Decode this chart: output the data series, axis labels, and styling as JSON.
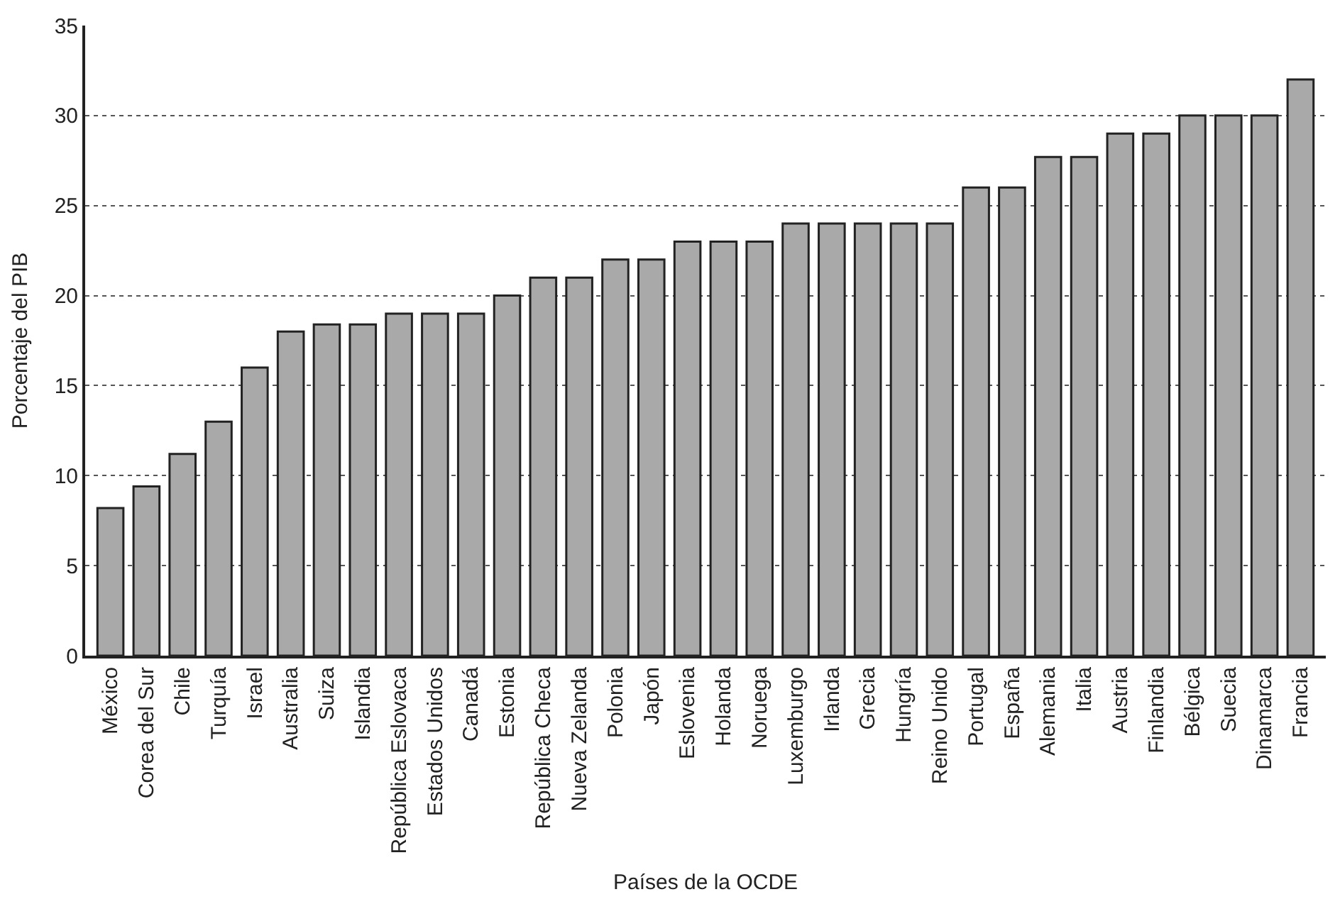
{
  "chart_data": {
    "type": "bar",
    "xlabel": "Países de la OCDE",
    "ylabel": "Porcentaje del PIB",
    "categories": [
      "México",
      "Corea del Sur",
      "Chile",
      "Turquía",
      "Israel",
      "Australia",
      "Suiza",
      "Islandia",
      "República Eslovaca",
      "Estados Unidos",
      "Canadá",
      "Estonia",
      "República Checa",
      "Nueva Zelanda",
      "Polonia",
      "Japón",
      "Eslovenia",
      "Holanda",
      "Noruega",
      "Luxemburgo",
      "Irlanda",
      "Grecia",
      "Hungría",
      "Reino Unido",
      "Portugal",
      "España",
      "Alemania",
      "Italia",
      "Austria",
      "Finlandia",
      "Bélgica",
      "Suecia",
      "Dinamarca",
      "Francia"
    ],
    "values": [
      8.2,
      9.4,
      11.2,
      13,
      16,
      18,
      18.4,
      18.4,
      19,
      19,
      19,
      20,
      21,
      21,
      22,
      22,
      23,
      23,
      23,
      24,
      24,
      24,
      24,
      24,
      26,
      26,
      27.7,
      27.7,
      29,
      29,
      30,
      30,
      30,
      32
    ],
    "color": "#a9a9a9",
    "ylim": [
      0,
      35
    ],
    "yticks": [
      0,
      5,
      10,
      15,
      20,
      25,
      30,
      35
    ],
    "grid": "y",
    "line_style": "dotted",
    "legend": false
  }
}
